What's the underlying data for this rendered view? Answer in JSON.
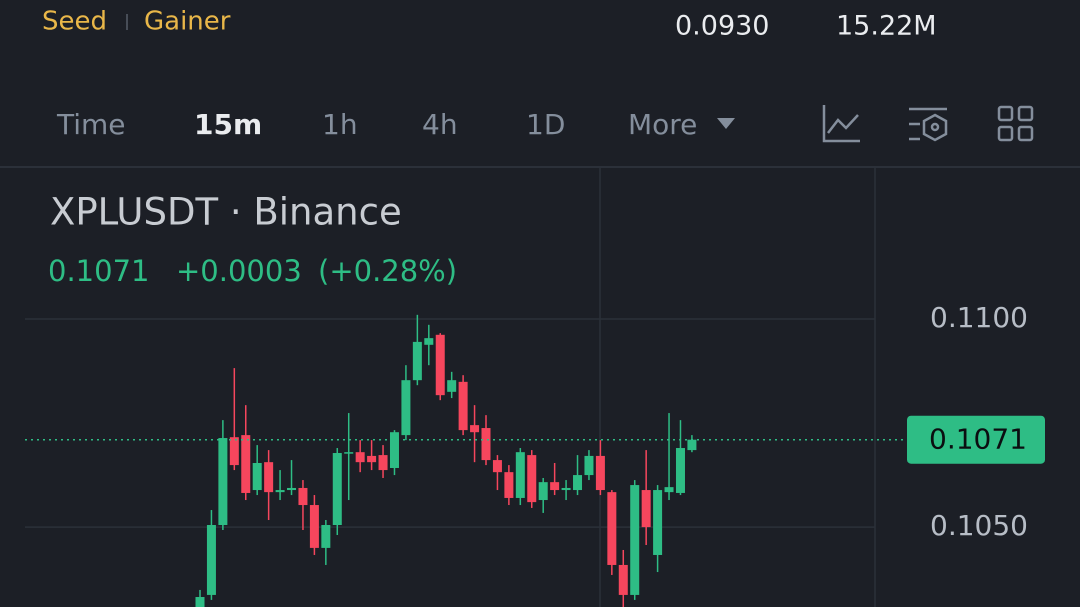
{
  "header": {
    "tags": [
      "Seed",
      "Gainer"
    ],
    "stats": [
      "0.0930",
      "15.22M"
    ]
  },
  "toolbar": {
    "tabs": [
      "Time",
      "15m",
      "1h",
      "4h",
      "1D",
      "More"
    ],
    "active": "15m"
  },
  "chart_data": {
    "type": "candlestick",
    "title": "XPLUSDT · Binance",
    "quote": {
      "last": "0.1071",
      "change": "+0.0003",
      "percent": "(+0.28%)"
    },
    "up_color": "#2ebd85",
    "down_color": "#f6465d",
    "ylim": [
      0.10308,
      0.11358
    ],
    "yticks": [
      {
        "value": 0.105,
        "label": "0.1050"
      },
      {
        "value": 0.11,
        "label": "0.1100"
      }
    ],
    "grid": true,
    "last_price": {
      "value": 0.1071,
      "label": "0.1071"
    },
    "open": [
      0.10308,
      0.10337,
      0.10505,
      0.10716,
      0.10721,
      0.10589,
      0.10656,
      0.10584,
      0.10589,
      0.10594,
      0.10553,
      0.1045,
      0.10505,
      0.10678,
      0.1068,
      0.10671,
      0.10673,
      0.10642,
      0.10721,
      0.10853,
      0.10938,
      0.10962,
      0.10825,
      0.10849,
      0.10745,
      0.10738,
      0.10661,
      0.10632,
      0.1057,
      0.10673,
      0.10565,
      0.10608,
      0.10589,
      0.10589,
      0.10625,
      0.10671,
      0.10584,
      0.10409,
      0.10337,
      0.10589,
      0.10433,
      0.10584,
      0.10582,
      0.10685
    ],
    "high": [
      0.10349,
      0.10541,
      0.10757,
      0.10882,
      0.10793,
      0.10697,
      0.10685,
      0.10637,
      0.10661,
      0.10613,
      0.10577,
      0.10517,
      0.1069,
      0.10774,
      0.10709,
      0.10709,
      0.10697,
      0.10733,
      0.10889,
      0.1101,
      0.10986,
      0.10966,
      0.10873,
      0.10865,
      0.10793,
      0.10769,
      0.10673,
      0.10649,
      0.1069,
      0.10685,
      0.10618,
      0.10654,
      0.10613,
      0.10673,
      0.10685,
      0.10709,
      0.10589,
      0.10445,
      0.10613,
      0.10685,
      0.10601,
      0.10774,
      0.10757,
      0.10721
    ],
    "low": [
      0.10308,
      0.10325,
      0.10493,
      0.10637,
      0.10565,
      0.10577,
      0.10517,
      0.10565,
      0.10577,
      0.10493,
      0.10433,
      0.10409,
      0.10481,
      0.10565,
      0.10632,
      0.10637,
      0.10618,
      0.10625,
      0.10709,
      0.10841,
      0.10889,
      0.10805,
      0.1081,
      0.10721,
      0.10656,
      0.10649,
      0.10589,
      0.10553,
      0.10553,
      0.10546,
      0.10534,
      0.10577,
      0.10565,
      0.10577,
      0.10613,
      0.10577,
      0.10385,
      0.10308,
      0.10325,
      0.10457,
      0.10392,
      0.10565,
      0.10577,
      0.1068
    ],
    "close": [
      0.10332,
      0.10505,
      0.10714,
      0.10649,
      0.10582,
      0.10654,
      0.10584,
      0.10589,
      0.10594,
      0.10553,
      0.1045,
      0.10505,
      0.10678,
      0.1068,
      0.10656,
      0.10656,
      0.10637,
      0.10728,
      0.10853,
      0.10945,
      0.10954,
      0.10817,
      0.10853,
      0.10733,
      0.10728,
      0.10661,
      0.10632,
      0.1057,
      0.1068,
      0.1056,
      0.10608,
      0.10589,
      0.10594,
      0.10625,
      0.10671,
      0.10589,
      0.10409,
      0.10337,
      0.10601,
      0.105,
      0.10589,
      0.10596,
      0.1069,
      0.1071
    ]
  }
}
